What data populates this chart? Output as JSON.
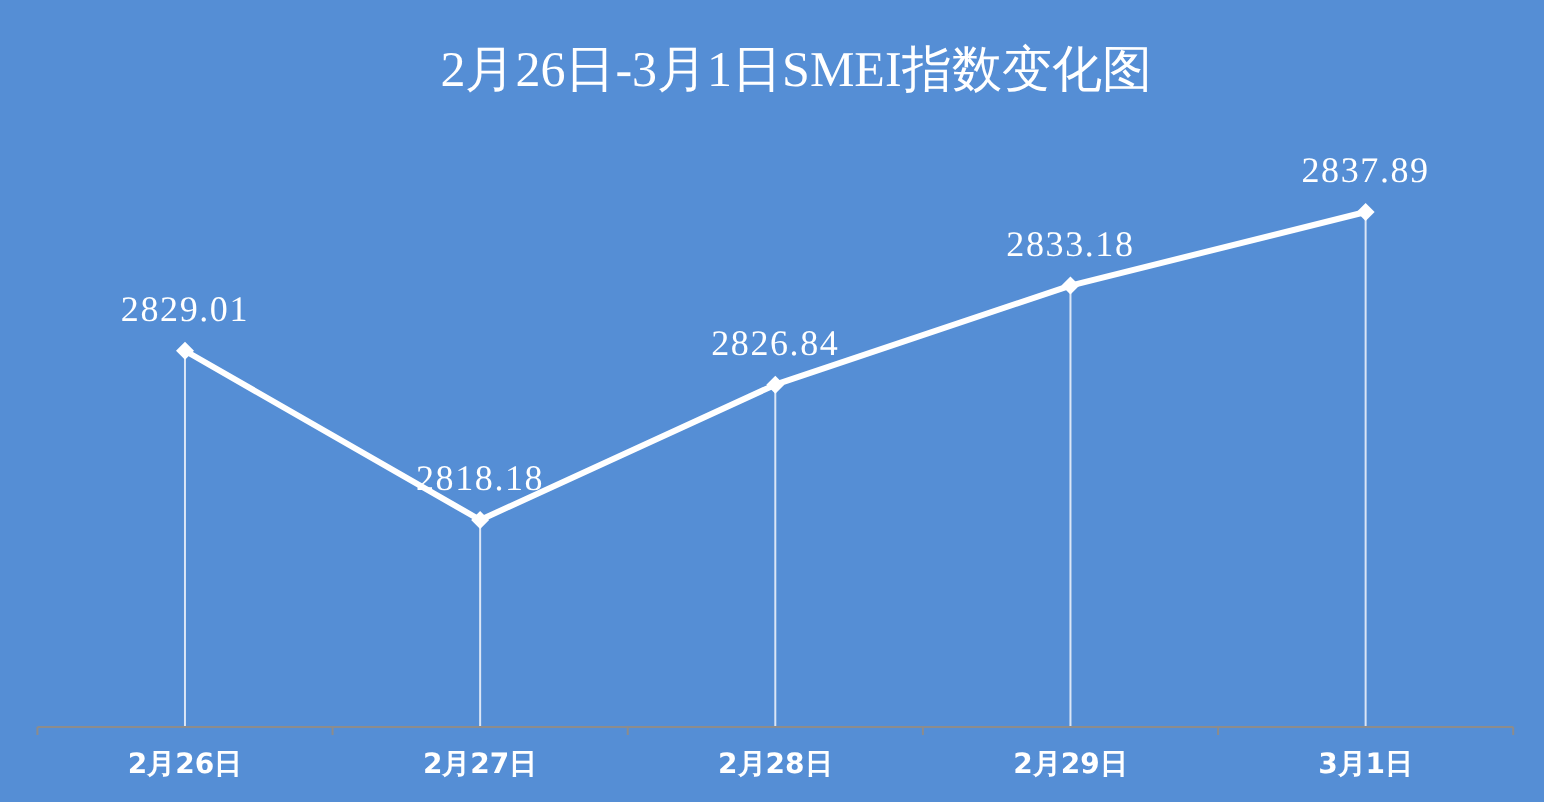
{
  "chart_data": {
    "type": "line",
    "title": "2月26日-3月1日SMEI指数变化图",
    "categories": [
      "2月26日",
      "2月27日",
      "2月28日",
      "2月29日",
      "3月1日"
    ],
    "series": [
      {
        "color": "#ffffff",
        "values": [
          2829.01,
          2818.18,
          2826.84,
          2833.18,
          2837.89
        ]
      }
    ],
    "tick_labels": "x",
    "data_labels": true,
    "marker": "diamond",
    "line_style": "solid",
    "grid": "x"
  }
}
